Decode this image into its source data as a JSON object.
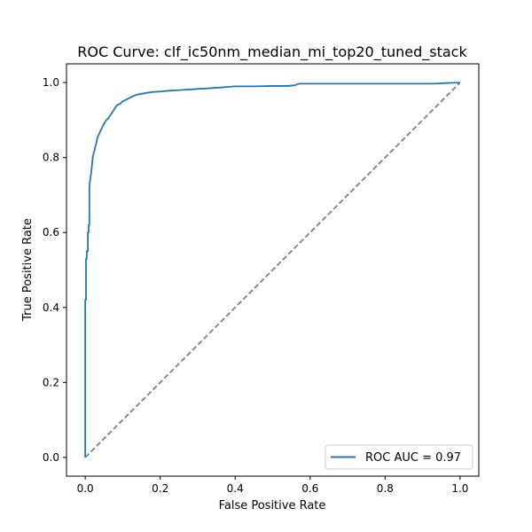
{
  "chart_data": {
    "type": "line",
    "title": "ROC Curve: clf_ic50nm_median_mi_top20_tuned_stack",
    "xlabel": "False Positive Rate",
    "ylabel": "True Positive Rate",
    "xlim": [
      -0.05,
      1.05
    ],
    "ylim": [
      -0.05,
      1.05
    ],
    "x_ticks": [
      "0.0",
      "0.2",
      "0.4",
      "0.6",
      "0.8",
      "1.0"
    ],
    "y_ticks": [
      "0.0",
      "0.2",
      "0.4",
      "0.6",
      "0.8",
      "1.0"
    ],
    "grid": false,
    "legend": {
      "placement": "lower-right",
      "entries": [
        "ROC AUC = 0.97"
      ]
    },
    "colors": {
      "roc": "#1f77b4",
      "chance": "#808080"
    },
    "series": [
      {
        "name": "ROC AUC = 0.97",
        "style": "solid",
        "x": [
          0.0,
          0.0,
          0.002,
          0.002,
          0.004,
          0.004,
          0.007,
          0.007,
          0.009,
          0.009,
          0.011,
          0.011,
          0.013,
          0.016,
          0.018,
          0.02,
          0.022,
          0.025,
          0.027,
          0.03,
          0.033,
          0.036,
          0.04,
          0.045,
          0.05,
          0.056,
          0.062,
          0.068,
          0.072,
          0.078,
          0.085,
          0.09,
          0.095,
          0.1,
          0.11,
          0.12,
          0.13,
          0.14,
          0.15,
          0.16,
          0.18,
          0.2,
          0.22,
          0.25,
          0.3,
          0.35,
          0.4,
          0.45,
          0.5,
          0.54,
          0.56,
          0.57,
          0.6,
          0.7,
          0.8,
          0.9,
          0.93,
          0.97,
          1.0
        ],
        "y": [
          0.0,
          0.42,
          0.42,
          0.53,
          0.53,
          0.55,
          0.55,
          0.6,
          0.6,
          0.62,
          0.62,
          0.72,
          0.74,
          0.76,
          0.78,
          0.8,
          0.81,
          0.82,
          0.83,
          0.84,
          0.855,
          0.86,
          0.87,
          0.88,
          0.89,
          0.9,
          0.905,
          0.915,
          0.92,
          0.93,
          0.94,
          0.942,
          0.945,
          0.95,
          0.955,
          0.96,
          0.965,
          0.968,
          0.97,
          0.972,
          0.975,
          0.976,
          0.978,
          0.98,
          0.983,
          0.986,
          0.99,
          0.99,
          0.991,
          0.991,
          0.993,
          0.997,
          0.997,
          0.997,
          0.997,
          0.997,
          0.997,
          0.999,
          1.0
        ]
      },
      {
        "name": "",
        "style": "dashed",
        "x": [
          0.0,
          1.0
        ],
        "y": [
          0.0,
          1.0
        ]
      }
    ]
  }
}
